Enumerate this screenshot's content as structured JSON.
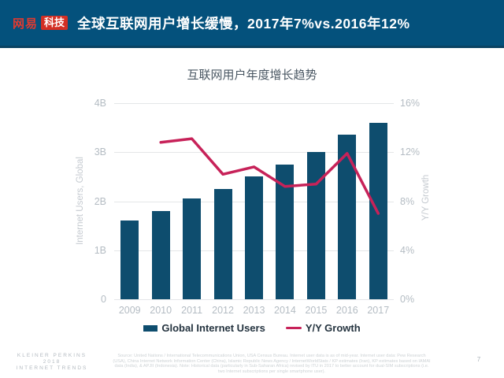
{
  "header": {
    "logo_primary": "网易",
    "logo_badge": "科技",
    "title": "全球互联网用户增长缓慢，2017年7%vs.2016年12%"
  },
  "chart_data": {
    "type": "bar",
    "title": "互联网用户年度增长趋势",
    "categories": [
      "2009",
      "2010",
      "2011",
      "2012",
      "2013",
      "2014",
      "2015",
      "2016",
      "2017"
    ],
    "series": [
      {
        "name": "Global Internet Users",
        "type": "bar",
        "axis": "left",
        "unit": "B",
        "color": "#0E4D6E",
        "values": [
          1.6,
          1.8,
          2.05,
          2.25,
          2.5,
          2.75,
          3.0,
          3.35,
          3.6
        ]
      },
      {
        "name": "Y/Y Growth",
        "type": "line",
        "axis": "right",
        "unit": "%",
        "color": "#C72259",
        "values": [
          null,
          12.8,
          13.1,
          10.2,
          10.8,
          9.2,
          9.4,
          11.9,
          7.0
        ]
      }
    ],
    "left_axis": {
      "title": "Internet Users, Global",
      "min": 0,
      "max": 4,
      "ticks": [
        "4B",
        "3B",
        "2B",
        "1B",
        "0"
      ]
    },
    "right_axis": {
      "title": "Y/Y Growth",
      "min": 0,
      "max": 16,
      "ticks": [
        "16%",
        "12%",
        "8%",
        "4%",
        "0%"
      ]
    },
    "grid": true,
    "legend_position": "bottom"
  },
  "legend": {
    "bar_label": "Global Internet Users",
    "line_label": "Y/Y Growth"
  },
  "footer": {
    "brand_lines": [
      "KLEINER PERKINS",
      "2018",
      "INTERNET TRENDS"
    ],
    "source": "Source: United Nations / International Telecommunications Union, USA Census Bureau. Internet user data is as of mid-year. Internet user data: Pew Research (USA), China Internet Network Information Center (China), Islamic Republic News Agency / InternetWorldStats / KP estimates (Iran), KP estimates based on IAMAI data (India), & APJII (Indonesia). Note: Historical data (particularly in Sub-Saharan Africa) revised by ITU in 2017 to better account for dual-SIM subscriptions (i.e. two Internet subscriptions per single smartphone user).",
    "page_number": "7"
  },
  "colors": {
    "header_background": "#04517C",
    "bar": "#0E4D6E",
    "line": "#C72259",
    "logo_red": "#D32F24",
    "gridline": "#E4E6E8"
  }
}
